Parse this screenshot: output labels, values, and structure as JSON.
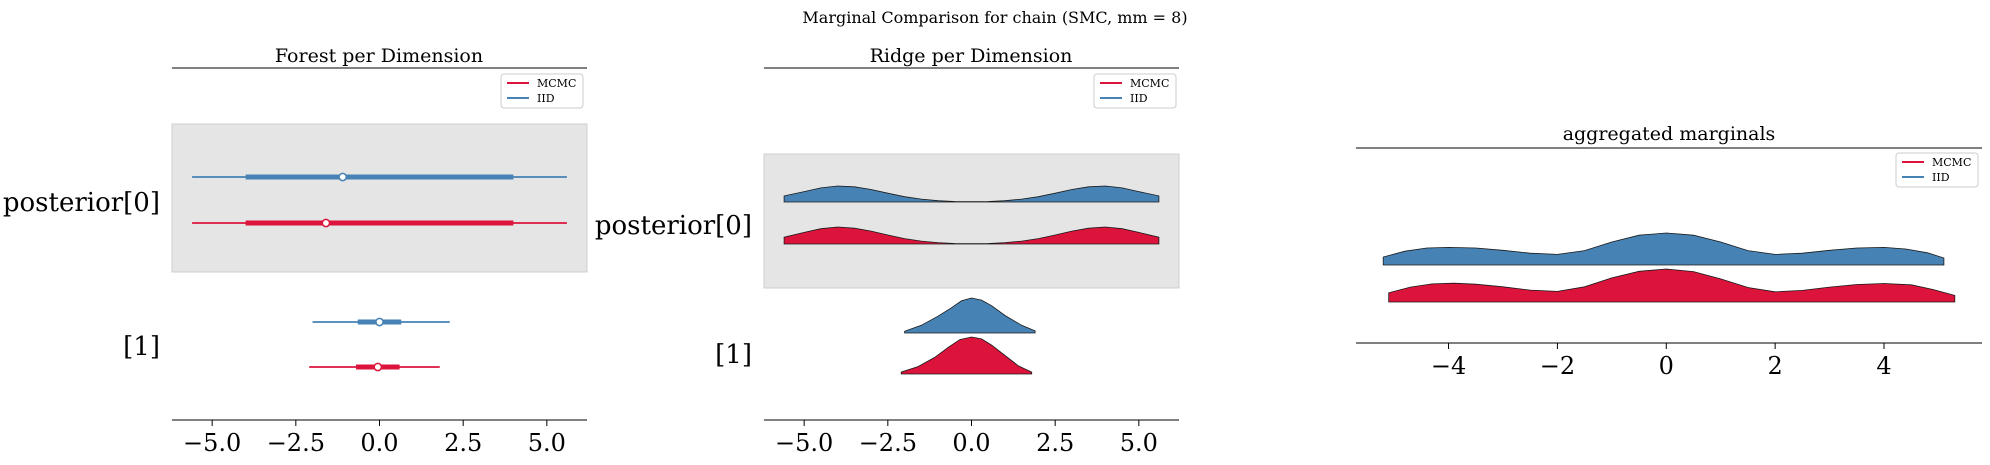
{
  "figure": {
    "suptitle": "Marginal Comparison for chain (SMC, mm = 8)",
    "colors": {
      "MCMC": "#dc143c",
      "IID": "#4682b4",
      "band": "#e5e5e5"
    }
  },
  "chart_data": [
    {
      "type": "forest",
      "title": "Forest per Dimension",
      "legend": {
        "placement": "top-right",
        "entries": [
          "MCMC",
          "IID"
        ]
      },
      "xlim": [
        -6.2,
        6.2
      ],
      "xticks": [
        -5.0,
        -2.5,
        0.0,
        2.5,
        5.0
      ],
      "xtick_labels": [
        "−5.0",
        "−2.5",
        "0.0",
        "2.5",
        "5.0"
      ],
      "rows": [
        {
          "label": "posterior[0]",
          "shaded": true,
          "series": [
            {
              "name": "IID",
              "hdi": [
                -5.6,
                5.6
              ],
              "iqr": [
                -4.0,
                4.0
              ],
              "center": -1.1
            },
            {
              "name": "MCMC",
              "hdi": [
                -5.6,
                5.6
              ],
              "iqr": [
                -4.0,
                4.0
              ],
              "center": -1.6
            }
          ]
        },
        {
          "label": "[1]",
          "shaded": false,
          "series": [
            {
              "name": "IID",
              "hdi": [
                -2.0,
                2.1
              ],
              "iqr": [
                -0.65,
                0.65
              ],
              "center": 0.0
            },
            {
              "name": "MCMC",
              "hdi": [
                -2.1,
                1.8
              ],
              "iqr": [
                -0.7,
                0.6
              ],
              "center": -0.05
            }
          ]
        }
      ]
    },
    {
      "type": "ridge",
      "title": "Ridge per Dimension",
      "legend": {
        "placement": "top-right",
        "entries": [
          "MCMC",
          "IID"
        ]
      },
      "xlim": [
        -6.2,
        6.2
      ],
      "xticks": [
        -5.0,
        -2.5,
        0.0,
        2.5,
        5.0
      ],
      "xtick_labels": [
        "−5.0",
        "−2.5",
        "0.0",
        "2.5",
        "5.0"
      ],
      "rows": [
        {
          "label": "posterior[0]",
          "shaded": true,
          "series": [
            {
              "name": "IID",
              "x": [
                -5.6,
                -5.0,
                -4.5,
                -4.0,
                -3.5,
                -3.0,
                -2.5,
                -2.0,
                -1.5,
                -1.0,
                -0.5,
                0.0,
                0.5,
                1.0,
                1.5,
                2.0,
                2.5,
                3.0,
                3.5,
                4.0,
                4.5,
                5.0,
                5.6
              ],
              "density": [
                0.38,
                0.65,
                0.88,
                1.0,
                0.95,
                0.78,
                0.55,
                0.33,
                0.18,
                0.08,
                0.03,
                0.02,
                0.03,
                0.08,
                0.18,
                0.33,
                0.55,
                0.78,
                0.95,
                1.0,
                0.88,
                0.65,
                0.38
              ]
            },
            {
              "name": "MCMC",
              "x": [
                -5.6,
                -5.0,
                -4.5,
                -4.0,
                -3.5,
                -3.0,
                -2.5,
                -2.0,
                -1.5,
                -1.0,
                -0.5,
                0.0,
                0.5,
                1.0,
                1.5,
                2.0,
                2.5,
                3.0,
                3.5,
                4.0,
                4.5,
                5.0,
                5.6
              ],
              "density": [
                0.4,
                0.68,
                0.9,
                1.0,
                0.93,
                0.76,
                0.53,
                0.32,
                0.17,
                0.08,
                0.03,
                0.02,
                0.03,
                0.08,
                0.17,
                0.32,
                0.53,
                0.76,
                0.93,
                1.0,
                0.9,
                0.68,
                0.4
              ]
            }
          ]
        },
        {
          "label": "[1]",
          "shaded": false,
          "series": [
            {
              "name": "IID",
              "x": [
                -2.0,
                -1.5,
                -1.0,
                -0.6,
                -0.3,
                0.0,
                0.3,
                0.6,
                1.0,
                1.5,
                1.9
              ],
              "density": [
                0.05,
                0.22,
                0.48,
                0.72,
                0.92,
                1.0,
                0.94,
                0.78,
                0.5,
                0.22,
                0.06
              ]
            },
            {
              "name": "MCMC",
              "x": [
                -2.1,
                -1.6,
                -1.1,
                -0.7,
                -0.35,
                0.0,
                0.3,
                0.6,
                1.0,
                1.4,
                1.8
              ],
              "density": [
                0.05,
                0.2,
                0.45,
                0.72,
                0.93,
                1.0,
                0.95,
                0.78,
                0.5,
                0.22,
                0.05
              ]
            }
          ]
        }
      ]
    },
    {
      "type": "ridge",
      "title": "aggregated marginals",
      "legend": {
        "placement": "top-right",
        "entries": [
          "MCMC",
          "IID"
        ]
      },
      "xlim": [
        -5.7,
        5.8
      ],
      "xticks": [
        -4,
        -2,
        0,
        2,
        4
      ],
      "xtick_labels": [
        "−4",
        "−2",
        "0",
        "2",
        "4"
      ],
      "series": [
        {
          "name": "IID",
          "x": [
            -5.2,
            -4.8,
            -4.4,
            -4.0,
            -3.5,
            -3.0,
            -2.5,
            -2.0,
            -1.5,
            -1.0,
            -0.5,
            0.0,
            0.5,
            1.0,
            1.5,
            2.0,
            2.5,
            3.0,
            3.5,
            4.0,
            4.4,
            4.8,
            5.1
          ],
          "density": [
            0.25,
            0.43,
            0.53,
            0.55,
            0.53,
            0.46,
            0.37,
            0.33,
            0.45,
            0.72,
            0.93,
            1.0,
            0.93,
            0.72,
            0.45,
            0.33,
            0.37,
            0.46,
            0.53,
            0.55,
            0.5,
            0.38,
            0.22
          ]
        },
        {
          "name": "MCMC",
          "x": [
            -5.1,
            -4.7,
            -4.3,
            -3.9,
            -3.5,
            -3.0,
            -2.5,
            -2.0,
            -1.5,
            -1.0,
            -0.5,
            0.0,
            0.5,
            1.0,
            1.5,
            2.0,
            2.5,
            3.0,
            3.5,
            4.0,
            4.5,
            4.9,
            5.3
          ],
          "density": [
            0.28,
            0.45,
            0.55,
            0.57,
            0.54,
            0.46,
            0.36,
            0.32,
            0.46,
            0.73,
            0.93,
            1.0,
            0.92,
            0.7,
            0.44,
            0.31,
            0.35,
            0.45,
            0.53,
            0.56,
            0.52,
            0.38,
            0.2
          ]
        }
      ]
    }
  ]
}
